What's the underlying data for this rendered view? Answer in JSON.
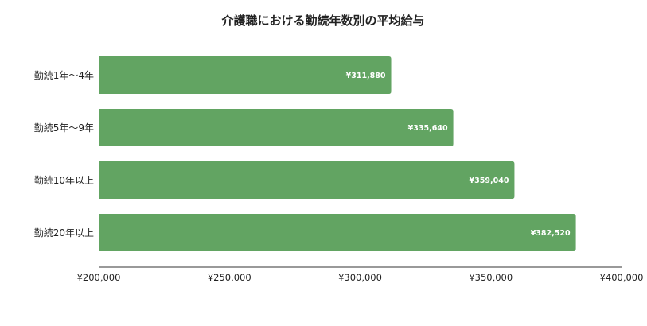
{
  "chart_data": {
    "type": "bar",
    "orientation": "horizontal",
    "title": "介護職における勤続年数別の平均給与",
    "categories": [
      "勤続1年～4年",
      "勤続5年～9年",
      "勤続10年以上",
      "勤続20年以上"
    ],
    "values": [
      311880,
      335640,
      359040,
      382520
    ],
    "value_labels": [
      "¥311,880",
      "¥335,640",
      "¥359,040",
      "¥382,520"
    ],
    "xlim": [
      200000,
      400000
    ],
    "x_ticks": [
      200000,
      250000,
      300000,
      350000,
      400000
    ],
    "x_tick_labels": [
      "¥200,000",
      "¥250,000",
      "¥300,000",
      "¥350,000",
      "¥400,000"
    ],
    "grid": false,
    "legend": "none",
    "bar_color": "#62a462"
  }
}
